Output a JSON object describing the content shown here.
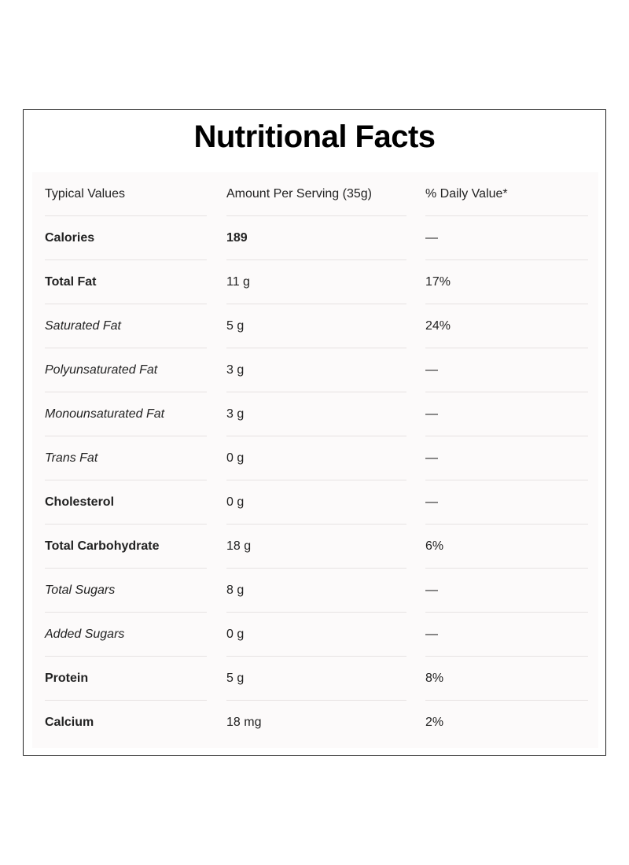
{
  "header": {
    "title": "Nutritional Facts"
  },
  "table": {
    "columns": [
      "Typical Values",
      "Amount Per Serving (35g)",
      "% Daily Value*"
    ],
    "rows": [
      [
        "Calories",
        "189",
        "—"
      ],
      [
        "Total Fat",
        "11 g",
        "17%"
      ],
      [
        "Saturated Fat",
        "5 g",
        "24%"
      ],
      [
        "Polyunsaturated Fat",
        "3 g",
        "—"
      ],
      [
        "Monounsaturated Fat",
        "3 g",
        "—"
      ],
      [
        "Trans Fat",
        "0 g",
        "—"
      ],
      [
        "Cholesterol",
        "0 g",
        "—"
      ],
      [
        "Total Carbohydrate",
        "18 g",
        "6%"
      ],
      [
        "Total Sugars",
        "8 g",
        "—"
      ],
      [
        "Added Sugars",
        "0 g",
        "—"
      ],
      [
        "Protein",
        "5 g",
        "8%"
      ],
      [
        "Calcium",
        "18 mg",
        "2%"
      ]
    ]
  }
}
